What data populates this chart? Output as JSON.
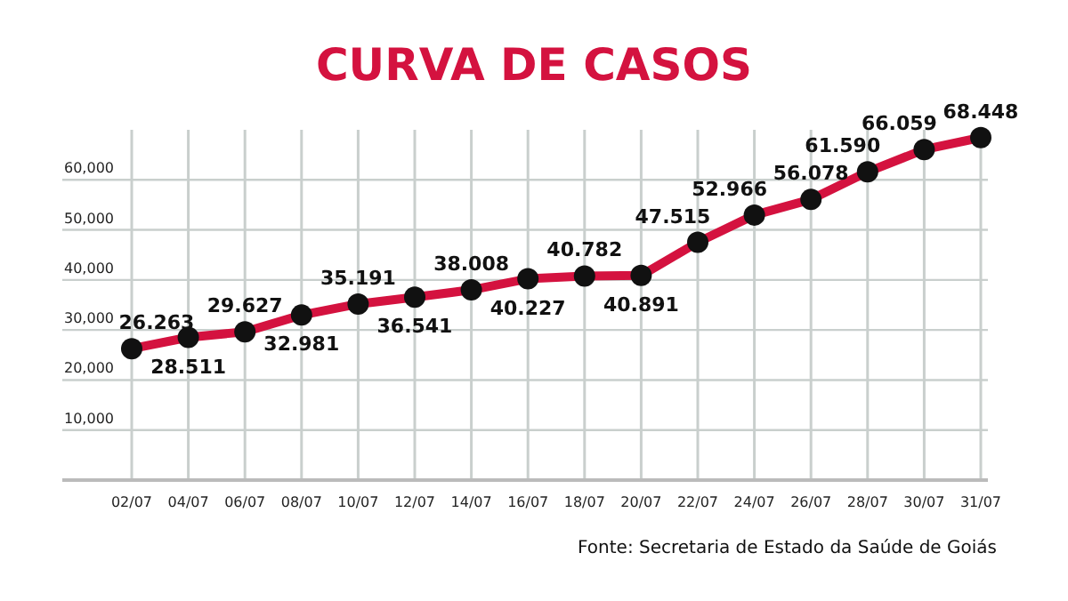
{
  "chart_data": {
    "type": "line",
    "title": "CURVA DE CASOS",
    "categories": [
      "02/07",
      "04/07",
      "06/07",
      "08/07",
      "10/07",
      "12/07",
      "14/07",
      "16/07",
      "18/07",
      "20/07",
      "22/07",
      "24/07",
      "26/07",
      "28/07",
      "30/07",
      "31/07"
    ],
    "series": [
      {
        "color": "#d4123f",
        "values": [
          26263,
          28511,
          29627,
          32981,
          35191,
          36541,
          38008,
          40227,
          40782,
          40891,
          47515,
          52966,
          56078,
          61590,
          66059,
          68448
        ]
      }
    ],
    "value_labels": [
      "26.263",
      "28.511",
      "29.627",
      "32.981",
      "35.191",
      "36.541",
      "38.008",
      "40.227",
      "40.782",
      "40.891",
      "47.515",
      "52.966",
      "56.078",
      "61.590",
      "66.059",
      "68.448"
    ],
    "ylim": [
      0,
      70000
    ],
    "yticks": [
      {
        "value": 10000,
        "label": "10,000"
      },
      {
        "value": 20000,
        "label": "20,000"
      },
      {
        "value": 30000,
        "label": "30,000"
      },
      {
        "value": 40000,
        "label": "40,000"
      },
      {
        "value": 50000,
        "label": "50,000"
      },
      {
        "value": 60000,
        "label": "60,000"
      }
    ],
    "grid": true,
    "marker": "circle",
    "line_style": "solid",
    "annotations": [
      "Fonte: Secretaria de Estado da Saúde de Goiás"
    ]
  }
}
